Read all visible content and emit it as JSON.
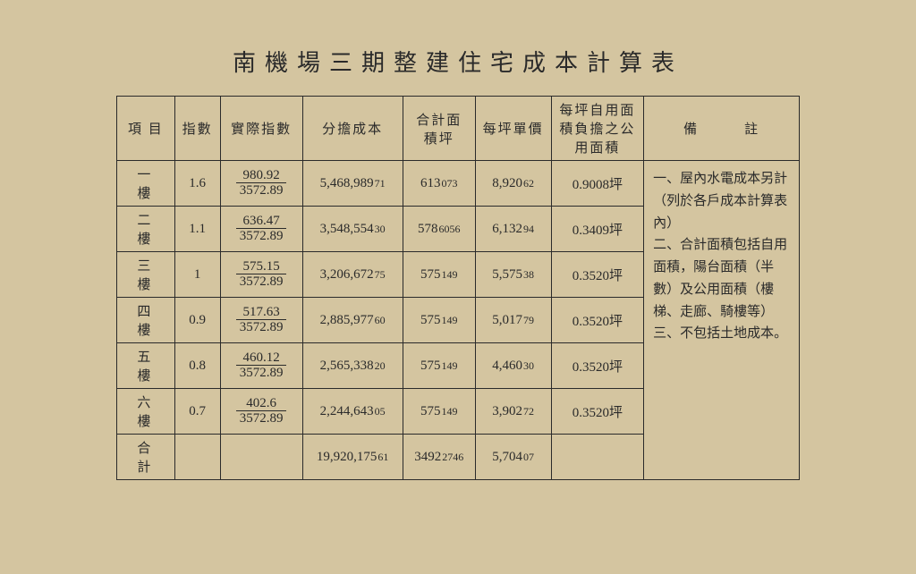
{
  "title": "南機場三期整建住宅成本計算表",
  "headers": {
    "c1": "項 目",
    "c2": "指數",
    "c3": "實際指數",
    "c4": "分擔成本",
    "c5": "合計面積坪",
    "c6": "每坪單價",
    "c7": "每坪自用面積負擔之公用面積",
    "c8": "備　　　註"
  },
  "rows": [
    {
      "floor": "一　樓",
      "idx": "1.6",
      "num": "980.92",
      "den": "3572.89",
      "cost_main": "5,468,989",
      "cost_sub": "71",
      "area_main": "613",
      "area_sub": "073",
      "unit_main": "8,920",
      "unit_sub": "62",
      "pub": "0.9008坪"
    },
    {
      "floor": "二　樓",
      "idx": "1.1",
      "num": "636.47",
      "den": "3572.89",
      "cost_main": "3,548,554",
      "cost_sub": "30",
      "area_main": "578",
      "area_sub": "6056",
      "unit_main": "6,132",
      "unit_sub": "94",
      "pub": "0.3409坪"
    },
    {
      "floor": "三　樓",
      "idx": "1",
      "num": "575.15",
      "den": "3572.89",
      "cost_main": "3,206,672",
      "cost_sub": "75",
      "area_main": "575",
      "area_sub": "149",
      "unit_main": "5,575",
      "unit_sub": "38",
      "pub": "0.3520坪"
    },
    {
      "floor": "四　樓",
      "idx": "0.9",
      "num": "517.63",
      "den": "3572.89",
      "cost_main": "2,885,977",
      "cost_sub": "60",
      "area_main": "575",
      "area_sub": "149",
      "unit_main": "5,017",
      "unit_sub": "79",
      "pub": "0.3520坪"
    },
    {
      "floor": "五　樓",
      "idx": "0.8",
      "num": "460.12",
      "den": "3572.89",
      "cost_main": "2,565,338",
      "cost_sub": "20",
      "area_main": "575",
      "area_sub": "149",
      "unit_main": "4,460",
      "unit_sub": "30",
      "pub": "0.3520坪"
    },
    {
      "floor": "六　樓",
      "idx": "0.7",
      "num": "402.6",
      "den": "3572.89",
      "cost_main": "2,244,643",
      "cost_sub": "05",
      "area_main": "575",
      "area_sub": "149",
      "unit_main": "3,902",
      "unit_sub": "72",
      "pub": "0.3520坪"
    }
  ],
  "total": {
    "label": "合　計",
    "cost_main": "19,920,175",
    "cost_sub": "61",
    "area_main": "3492",
    "area_sub": "2746",
    "unit_main": "5,704",
    "unit_sub": "07"
  },
  "notes": {
    "n1": "一、屋內水電成本另計（列於各戶成本計算表內）",
    "n2": "二、合計面積包括自用面積，陽台面積（半數）及公用面積（樓梯、走廊、騎樓等）",
    "n3": "三、不包括土地成本。"
  },
  "colors": {
    "bg": "#d4c5a0",
    "text": "#2a2a2a",
    "border": "#2a2a2a"
  }
}
